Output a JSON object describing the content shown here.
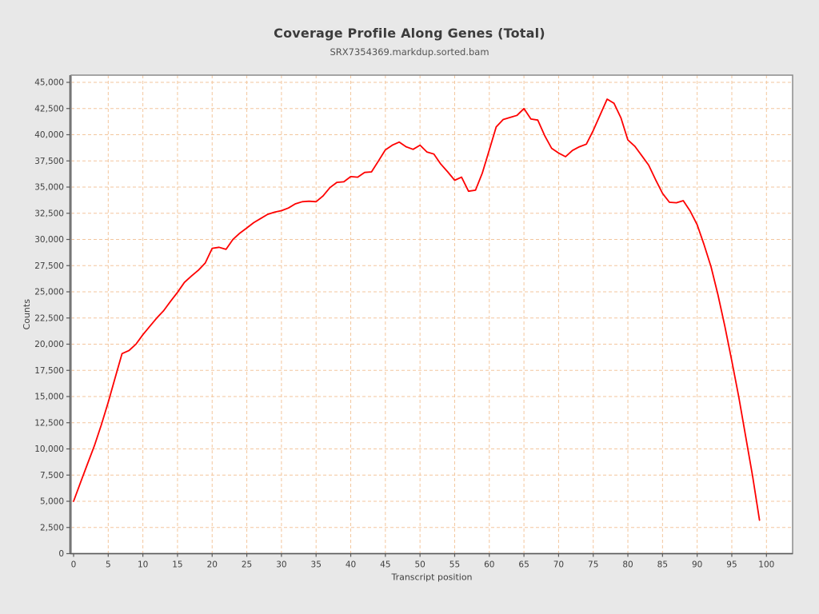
{
  "chart_data": {
    "type": "line",
    "title": "Coverage Profile Along Genes (Total)",
    "subtitle": "SRX7354369.markdup.sorted.bam",
    "xlabel": "Transcript position",
    "ylabel": "Counts",
    "xlim": [
      0,
      104
    ],
    "ylim": [
      0,
      45000
    ],
    "x_ticks": [
      0,
      5,
      10,
      15,
      20,
      25,
      30,
      35,
      40,
      45,
      50,
      55,
      60,
      65,
      70,
      75,
      80,
      85,
      90,
      95,
      100
    ],
    "y_ticks": [
      0,
      2500,
      5000,
      7500,
      10000,
      12500,
      15000,
      17500,
      20000,
      22500,
      25000,
      27500,
      30000,
      32500,
      35000,
      37500,
      40000,
      42500,
      45000
    ],
    "grid": true,
    "legend_position": "none",
    "series": [
      {
        "name": "SRX7354369.markdup.sorted.bam",
        "x": [
          0,
          1,
          2,
          3,
          4,
          5,
          6,
          7,
          8,
          9,
          10,
          11,
          12,
          13,
          14,
          15,
          16,
          17,
          18,
          19,
          20,
          21,
          22,
          23,
          24,
          25,
          26,
          27,
          28,
          29,
          30,
          31,
          32,
          33,
          34,
          35,
          36,
          37,
          38,
          39,
          40,
          41,
          42,
          43,
          44,
          45,
          46,
          47,
          48,
          49,
          50,
          51,
          52,
          53,
          54,
          55,
          56,
          57,
          58,
          59,
          60,
          61,
          62,
          63,
          64,
          65,
          66,
          67,
          68,
          69,
          70,
          71,
          72,
          73,
          74,
          75,
          76,
          77,
          78,
          79,
          80,
          81,
          82,
          83,
          84,
          85,
          86,
          87,
          88,
          89,
          90,
          91,
          92,
          93,
          94,
          95,
          96,
          97,
          98,
          99
        ],
        "values": [
          5000,
          6800,
          8550,
          10300,
          12300,
          14450,
          16800,
          19100,
          19400,
          20000,
          20900,
          21700,
          22500,
          23200,
          24100,
          24950,
          25900,
          26500,
          27050,
          27750,
          29150,
          29250,
          29050,
          30000,
          30600,
          31100,
          31600,
          32000,
          32400,
          32600,
          32750,
          33000,
          33400,
          33600,
          33650,
          33600,
          34150,
          34950,
          35450,
          35500,
          36000,
          35950,
          36400,
          36450,
          37500,
          38550,
          39000,
          39300,
          38850,
          38600,
          39000,
          38350,
          38150,
          37200,
          36450,
          35650,
          35950,
          34600,
          34700,
          36350,
          38550,
          40750,
          41450,
          41650,
          41850,
          42500,
          41500,
          41400,
          39900,
          38700,
          38250,
          37900,
          38500,
          38850,
          39100,
          40400,
          41900,
          43400,
          43000,
          41600,
          39500,
          38900,
          38000,
          37100,
          35700,
          34400,
          33550,
          33500,
          33700,
          32700,
          31400,
          29500,
          27400,
          24700,
          21700,
          18400,
          15000,
          11200,
          7400,
          3200
        ]
      }
    ],
    "colors": {
      "line": "#fe0000",
      "grid": "#f3c69d",
      "plot_background": "#ffffff",
      "page_background": "#e8e8e8",
      "plot_border": "#8a8a8a",
      "axis": "#5a5a5a",
      "tick_label": "#3f3f3f"
    }
  }
}
